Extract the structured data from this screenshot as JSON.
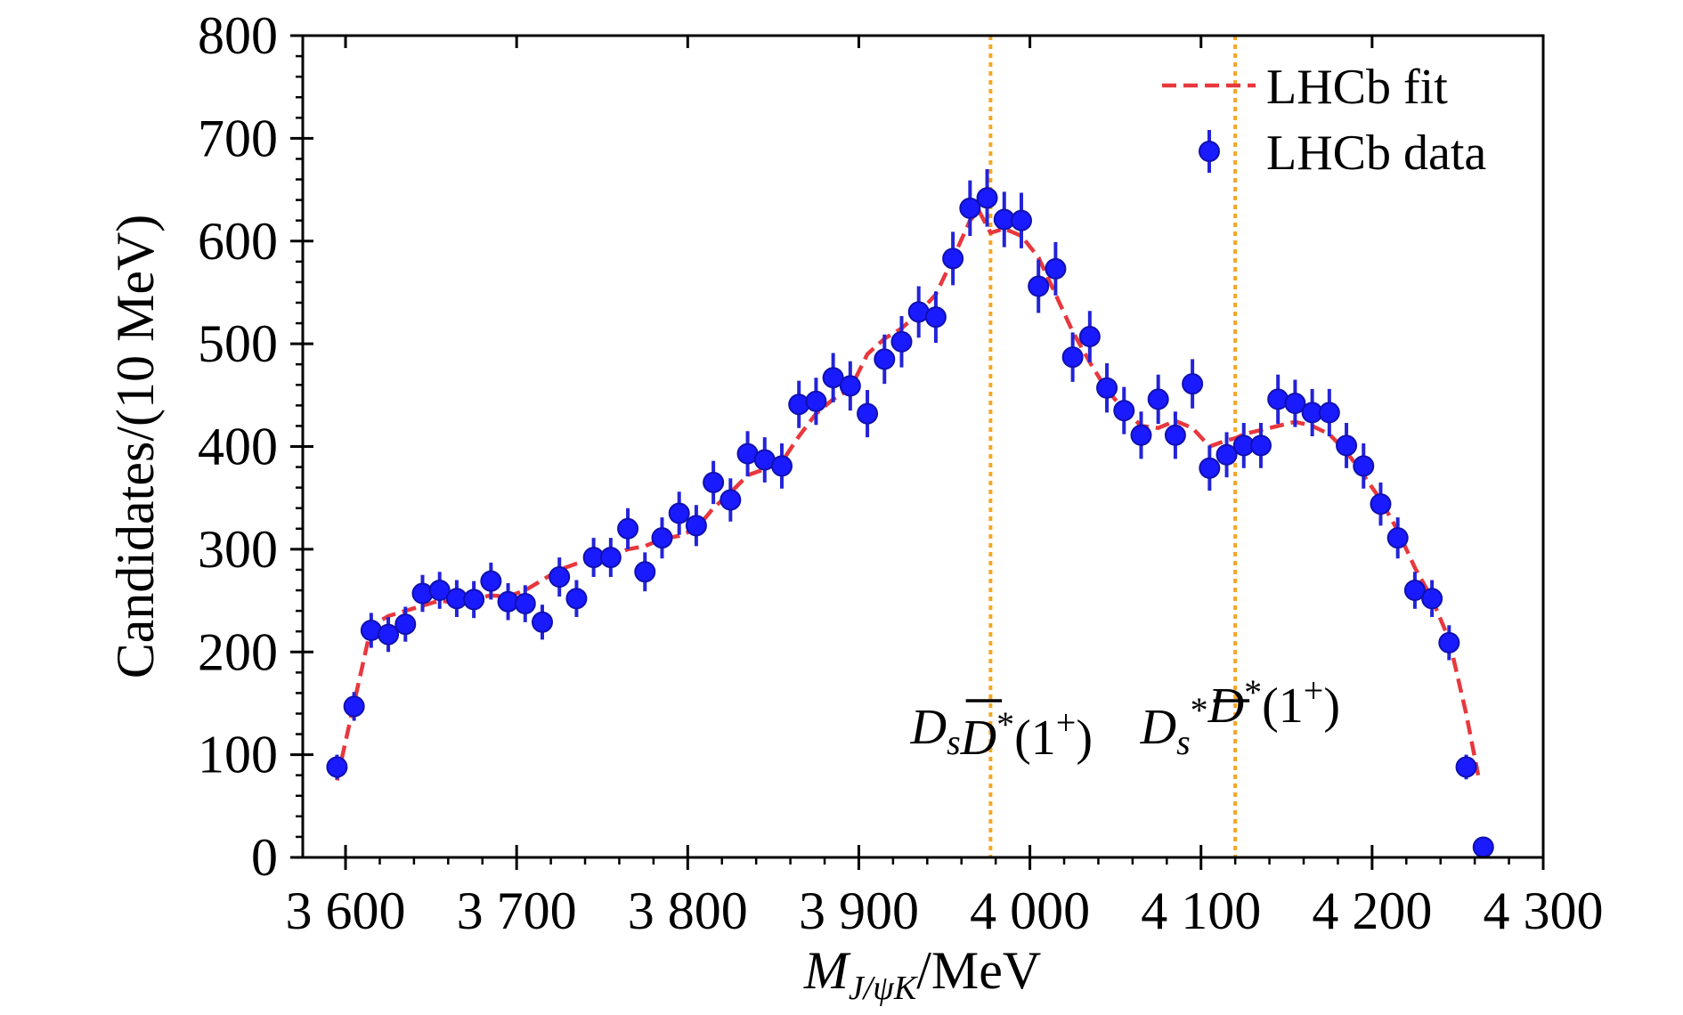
{
  "chart_data": {
    "type": "scatter",
    "xlabel_main": "M",
    "xlabel_sub": "J/ψK",
    "xlabel_unit": "/MeV",
    "ylabel": "Candidates/(10 MeV)",
    "xlim": [
      3575,
      4300
    ],
    "ylim": [
      0,
      800
    ],
    "xticks": [
      3600,
      3700,
      3800,
      3900,
      4000,
      4100,
      4200,
      4300
    ],
    "xtick_labels": [
      "3 600",
      "3 700",
      "3 800",
      "3 900",
      "4 000",
      "4 100",
      "4 200",
      "4 300"
    ],
    "yticks": [
      0,
      100,
      200,
      300,
      400,
      500,
      600,
      700,
      800
    ],
    "ytick_labels": [
      "0",
      "100",
      "200",
      "300",
      "400",
      "500",
      "600",
      "700",
      "800"
    ],
    "legend": {
      "position": "top-right",
      "entries": [
        {
          "label": "LHCb fit",
          "style": "dashed-line",
          "color": "#e8383d"
        },
        {
          "label": "LHCb data",
          "style": "marker",
          "color": "#1a1aff"
        }
      ]
    },
    "colors": {
      "data": "#1a1aff",
      "fit": "#e8383d",
      "threshold": "#f5a623"
    },
    "thresholds": [
      {
        "x": 3977,
        "label_main": "D",
        "label_sub": "s",
        "label_rest": "*(1",
        "label_sup": "+",
        "label_end": ")",
        "bar_letter": "D"
      },
      {
        "x": 4120,
        "label_main": "D",
        "label_sub": "s",
        "label_sup1": "*",
        "label_rest": "*(1",
        "label_sup": "+",
        "label_end": ")",
        "bar_letter": "D"
      }
    ],
    "series": [
      {
        "name": "LHCb data",
        "x": [
          3595,
          3605,
          3615,
          3625,
          3635,
          3645,
          3655,
          3665,
          3675,
          3685,
          3695,
          3705,
          3715,
          3725,
          3735,
          3745,
          3755,
          3765,
          3775,
          3785,
          3795,
          3805,
          3815,
          3825,
          3835,
          3845,
          3855,
          3865,
          3875,
          3885,
          3895,
          3905,
          3915,
          3925,
          3935,
          3945,
          3955,
          3965,
          3975,
          3985,
          3995,
          4005,
          4015,
          4025,
          4035,
          4045,
          4055,
          4065,
          4075,
          4085,
          4095,
          4105,
          4115,
          4125,
          4135,
          4145,
          4155,
          4165,
          4175,
          4185,
          4195,
          4205,
          4215,
          4225,
          4235,
          4245,
          4255,
          4265
        ],
        "y": [
          88,
          147,
          221,
          217,
          227,
          257,
          260,
          252,
          251,
          269,
          249,
          247,
          229,
          273,
          252,
          292,
          292,
          320,
          278,
          311,
          335,
          323,
          365,
          348,
          393,
          387,
          381,
          441,
          444,
          467,
          459,
          432,
          485,
          502,
          531,
          526,
          583,
          632,
          642,
          621,
          620,
          556,
          573,
          487,
          507,
          457,
          435,
          411,
          446,
          411,
          461,
          379,
          392,
          401,
          401,
          446,
          442,
          433,
          433,
          401,
          381,
          344,
          311,
          260,
          252,
          209,
          88,
          10
        ],
        "err": [
          12,
          14,
          17,
          17,
          17,
          18,
          18,
          18,
          18,
          18,
          18,
          18,
          17,
          19,
          18,
          19,
          19,
          20,
          19,
          20,
          21,
          20,
          21,
          21,
          22,
          22,
          22,
          23,
          23,
          24,
          24,
          23,
          24,
          25,
          25,
          25,
          26,
          27,
          28,
          27,
          27,
          26,
          26,
          24,
          25,
          24,
          23,
          23,
          24,
          23,
          24,
          22,
          22,
          22,
          22,
          24,
          23,
          23,
          23,
          22,
          22,
          21,
          20,
          18,
          18,
          17,
          12,
          6
        ]
      },
      {
        "name": "LHCb fit",
        "x": [
          3595,
          3605,
          3615,
          3625,
          3635,
          3645,
          3655,
          3665,
          3675,
          3685,
          3695,
          3705,
          3715,
          3725,
          3735,
          3745,
          3755,
          3765,
          3775,
          3785,
          3795,
          3805,
          3815,
          3825,
          3835,
          3845,
          3855,
          3865,
          3875,
          3885,
          3895,
          3905,
          3915,
          3925,
          3935,
          3945,
          3955,
          3965,
          3970,
          3977,
          3985,
          3995,
          4005,
          4015,
          4025,
          4035,
          4045,
          4055,
          4065,
          4075,
          4085,
          4095,
          4105,
          4115,
          4120,
          4125,
          4135,
          4145,
          4155,
          4165,
          4175,
          4185,
          4195,
          4205,
          4215,
          4225,
          4235,
          4245,
          4255,
          4262
        ],
        "y": [
          75,
          150,
          225,
          235,
          240,
          245,
          250,
          248,
          252,
          255,
          254,
          260,
          270,
          280,
          286,
          290,
          293,
          300,
          303,
          310,
          313,
          320,
          340,
          355,
          372,
          378,
          385,
          410,
          432,
          446,
          456,
          490,
          505,
          515,
          530,
          548,
          583,
          620,
          630,
          608,
          612,
          605,
          584,
          548,
          512,
          482,
          455,
          436,
          420,
          418,
          425,
          418,
          400,
          406,
          408,
          412,
          416,
          420,
          424,
          420,
          412,
          395,
          372,
          348,
          318,
          282,
          252,
          212,
          140,
          80
        ]
      }
    ]
  }
}
